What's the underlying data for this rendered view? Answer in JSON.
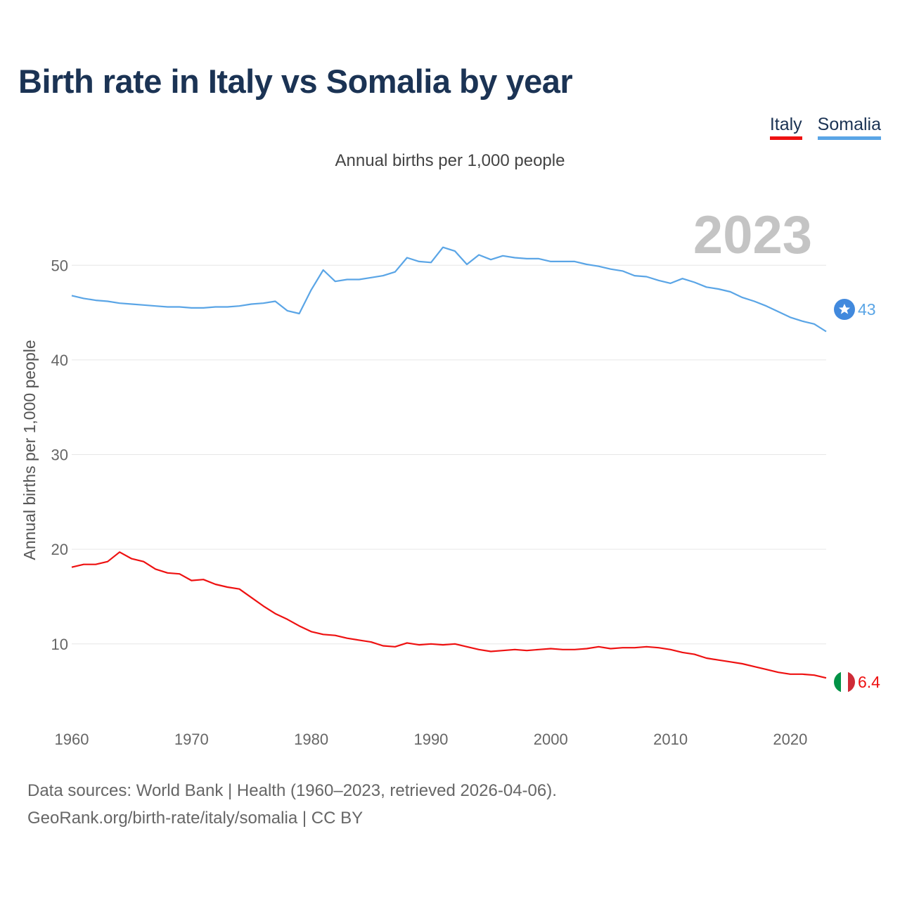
{
  "title": "Birth rate in Italy vs Somalia by year",
  "subtitle": "Annual births per 1,000 people",
  "legend": [
    {
      "label": "Italy",
      "color": "#ee1111"
    },
    {
      "label": "Somalia",
      "color": "#5aa5e6"
    }
  ],
  "footer": {
    "line1": "Data sources: World Bank | Health (1960–2023, retrieved 2026-04-06).",
    "line2": "GeoRank.org/birth-rate/italy/somalia | CC BY"
  },
  "chart_data": {
    "type": "line",
    "title": "Birth rate in Italy vs Somalia by year",
    "ylabel": "Annual births per 1,000 people",
    "xlabel": "",
    "xlim": [
      1960,
      2023
    ],
    "ylim": [
      3,
      55
    ],
    "yticks": [
      10,
      20,
      30,
      40,
      50
    ],
    "xticks": [
      1960,
      1970,
      1980,
      1990,
      2000,
      2010,
      2020
    ],
    "grid": true,
    "year_label": "2023",
    "series": [
      {
        "name": "Italy",
        "color": "#ee1111",
        "end_label": "6.4",
        "icon": "italy-flag-icon",
        "x": [
          1960,
          1961,
          1962,
          1963,
          1964,
          1965,
          1966,
          1967,
          1968,
          1969,
          1970,
          1971,
          1972,
          1973,
          1974,
          1975,
          1976,
          1977,
          1978,
          1979,
          1980,
          1981,
          1982,
          1983,
          1984,
          1985,
          1986,
          1987,
          1988,
          1989,
          1990,
          1991,
          1992,
          1993,
          1994,
          1995,
          1996,
          1997,
          1998,
          1999,
          2000,
          2001,
          2002,
          2003,
          2004,
          2005,
          2006,
          2007,
          2008,
          2009,
          2010,
          2011,
          2012,
          2013,
          2014,
          2015,
          2016,
          2017,
          2018,
          2019,
          2020,
          2021,
          2022,
          2023
        ],
        "values": [
          18.1,
          18.4,
          18.4,
          18.7,
          19.7,
          19.0,
          18.7,
          17.9,
          17.5,
          17.4,
          16.7,
          16.8,
          16.3,
          16.0,
          15.8,
          14.9,
          14.0,
          13.2,
          12.6,
          11.9,
          11.3,
          11.0,
          10.9,
          10.6,
          10.4,
          10.2,
          9.8,
          9.7,
          10.1,
          9.9,
          10.0,
          9.9,
          10.0,
          9.7,
          9.4,
          9.2,
          9.3,
          9.4,
          9.3,
          9.4,
          9.5,
          9.4,
          9.4,
          9.5,
          9.7,
          9.5,
          9.6,
          9.6,
          9.7,
          9.6,
          9.4,
          9.1,
          8.9,
          8.5,
          8.3,
          8.1,
          7.9,
          7.6,
          7.3,
          7.0,
          6.8,
          6.8,
          6.7,
          6.4
        ]
      },
      {
        "name": "Somalia",
        "color": "#5aa5e6",
        "end_label": "43",
        "icon": "somalia-flag-icon",
        "x": [
          1960,
          1961,
          1962,
          1963,
          1964,
          1965,
          1966,
          1967,
          1968,
          1969,
          1970,
          1971,
          1972,
          1973,
          1974,
          1975,
          1976,
          1977,
          1978,
          1979,
          1980,
          1981,
          1982,
          1983,
          1984,
          1985,
          1986,
          1987,
          1988,
          1989,
          1990,
          1991,
          1992,
          1993,
          1994,
          1995,
          1996,
          1997,
          1998,
          1999,
          2000,
          2001,
          2002,
          2003,
          2004,
          2005,
          2006,
          2007,
          2008,
          2009,
          2010,
          2011,
          2012,
          2013,
          2014,
          2015,
          2016,
          2017,
          2018,
          2019,
          2020,
          2021,
          2022,
          2023
        ],
        "values": [
          46.8,
          46.5,
          46.3,
          46.2,
          46.0,
          45.9,
          45.8,
          45.7,
          45.6,
          45.6,
          45.5,
          45.5,
          45.6,
          45.6,
          45.7,
          45.9,
          46.0,
          46.2,
          45.2,
          44.9,
          47.4,
          49.5,
          48.3,
          48.5,
          48.5,
          48.7,
          48.9,
          49.3,
          50.8,
          50.4,
          50.3,
          51.9,
          51.5,
          50.1,
          51.1,
          50.6,
          51.0,
          50.8,
          50.7,
          50.7,
          50.4,
          50.4,
          50.4,
          50.1,
          49.9,
          49.6,
          49.4,
          48.9,
          48.8,
          48.4,
          48.1,
          48.6,
          48.2,
          47.7,
          47.5,
          47.2,
          46.6,
          46.2,
          45.7,
          45.1,
          44.5,
          44.1,
          43.8,
          43.0
        ]
      }
    ]
  }
}
